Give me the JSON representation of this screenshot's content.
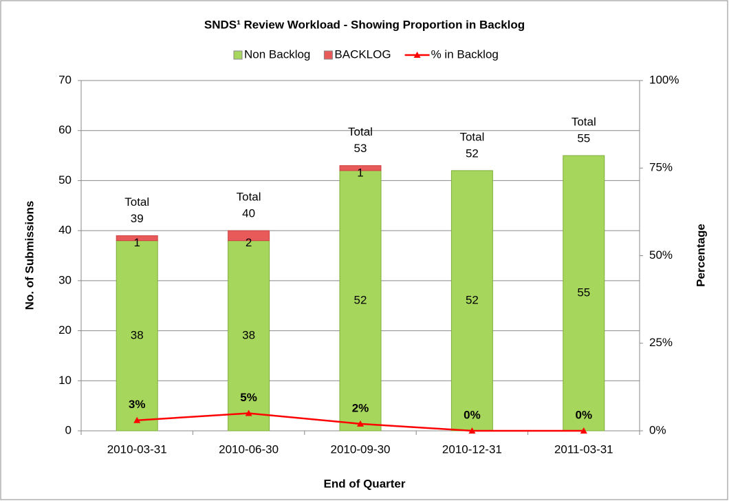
{
  "chart_data": {
    "type": "bar",
    "title": "SNDS¹ Review Workload - Showing Proportion in Backlog",
    "x_label": "End of Quarter",
    "y_label": "No. of Submissions",
    "y2_label": "Percentage",
    "categories": [
      "2010-03-31",
      "2010-06-30",
      "2010-09-30",
      "2010-12-31",
      "2011-03-31"
    ],
    "series": [
      {
        "name": "Non Backlog",
        "color": "#a6d65c",
        "values": [
          38,
          38,
          52,
          52,
          55
        ]
      },
      {
        "name": "BACKLOG",
        "color": "#e8595a",
        "values": [
          1,
          2,
          1,
          0,
          0
        ],
        "value_labels": [
          "1",
          "2",
          "1",
          null,
          null
        ]
      },
      {
        "name": "% in Backlog",
        "color": "#ff0000",
        "axis": "y2",
        "values": [
          3,
          5,
          2,
          0,
          0
        ],
        "value_labels": [
          "3%",
          "5%",
          "2%",
          "0%",
          "0%"
        ]
      }
    ],
    "total_label": "Total",
    "totals": [
      39,
      40,
      53,
      52,
      55
    ],
    "ylim": [
      0,
      70
    ],
    "yticks": [
      0,
      10,
      20,
      30,
      40,
      50,
      60,
      70
    ],
    "y2lim": [
      0,
      100
    ],
    "y2ticks": [
      {
        "value": 0,
        "label": "0%"
      },
      {
        "value": 25,
        "label": "25%"
      },
      {
        "value": 50,
        "label": "50%"
      },
      {
        "value": 75,
        "label": "75%"
      },
      {
        "value": 100,
        "label": "100%"
      }
    ],
    "grid": true,
    "legend": "top"
  }
}
